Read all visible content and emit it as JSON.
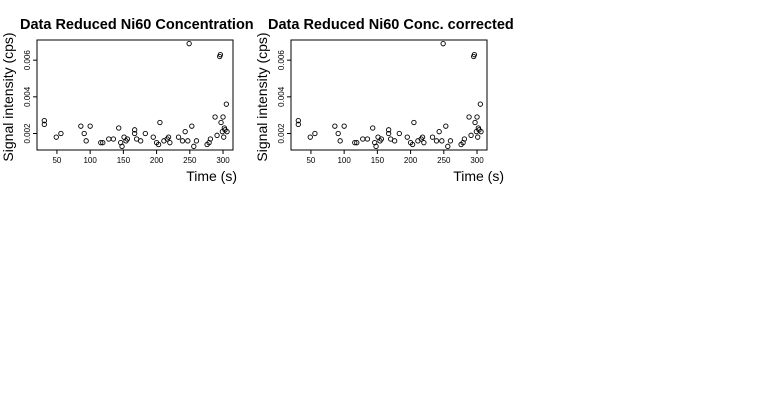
{
  "chart_data": [
    {
      "type": "scatter",
      "title": "Data Reduced Ni60 Concentration",
      "xlabel": "Time (s)",
      "ylabel": "Signal intensity (cps)",
      "xlim": [
        20,
        315
      ],
      "ylim": [
        0.0011,
        0.0071
      ],
      "x_ticks": [
        50,
        100,
        150,
        200,
        250,
        300
      ],
      "x_tick_labels": [
        "50",
        "100",
        "150",
        "200",
        "250",
        "300"
      ],
      "y_ticks": [
        0.002,
        0.004,
        0.006
      ],
      "y_tick_labels": [
        "0.002",
        "0.004",
        "0.006"
      ],
      "grid": false,
      "x": [
        31,
        31,
        49,
        56,
        86,
        91,
        94,
        100,
        116,
        119,
        128,
        135,
        143,
        146,
        148,
        151,
        154,
        156,
        167,
        167,
        170,
        176,
        183,
        195,
        200,
        203,
        205,
        211,
        216,
        218,
        220,
        233,
        239,
        243,
        247,
        249,
        253,
        256,
        260,
        276,
        279,
        281,
        288,
        291,
        295,
        296,
        297,
        299,
        300,
        301,
        302,
        303,
        305,
        306
      ],
      "y": [
        0.0027,
        0.0025,
        0.0018,
        0.002,
        0.0024,
        0.002,
        0.0016,
        0.0024,
        0.0015,
        0.0015,
        0.0017,
        0.0017,
        0.0023,
        0.0015,
        0.0013,
        0.0018,
        0.0016,
        0.0017,
        0.0022,
        0.002,
        0.0017,
        0.0016,
        0.002,
        0.0018,
        0.0015,
        0.0014,
        0.0026,
        0.0016,
        0.0017,
        0.0018,
        0.0015,
        0.0018,
        0.0016,
        0.0021,
        0.0016,
        0.0069,
        0.0024,
        0.0013,
        0.0016,
        0.0014,
        0.0015,
        0.0017,
        0.0029,
        0.0019,
        0.0062,
        0.0063,
        0.0026,
        0.0021,
        0.0029,
        0.0018,
        0.0023,
        0.0022,
        0.0036,
        0.0021
      ]
    },
    {
      "type": "scatter",
      "title": "Data Reduced Ni60 Conc. corrected",
      "xlabel": "Time (s)",
      "ylabel": "Signal intensity (cps)",
      "xlim": [
        20,
        315
      ],
      "ylim": [
        0.0011,
        0.0071
      ],
      "x_ticks": [
        50,
        100,
        150,
        200,
        250,
        300
      ],
      "x_tick_labels": [
        "50",
        "100",
        "150",
        "200",
        "250",
        "300"
      ],
      "y_ticks": [
        0.002,
        0.004,
        0.006
      ],
      "y_tick_labels": [
        "0.002",
        "0.004",
        "0.006"
      ],
      "grid": false,
      "x": [
        31,
        31,
        49,
        56,
        86,
        91,
        94,
        100,
        116,
        119,
        128,
        135,
        143,
        146,
        148,
        151,
        154,
        156,
        167,
        167,
        170,
        176,
        183,
        195,
        200,
        203,
        205,
        211,
        216,
        218,
        220,
        233,
        239,
        243,
        247,
        249,
        253,
        256,
        260,
        276,
        279,
        281,
        288,
        291,
        295,
        296,
        297,
        299,
        300,
        301,
        302,
        303,
        305,
        306
      ],
      "y": [
        0.0027,
        0.0025,
        0.0018,
        0.002,
        0.0024,
        0.002,
        0.0016,
        0.0024,
        0.0015,
        0.0015,
        0.0017,
        0.0017,
        0.0023,
        0.0015,
        0.0013,
        0.0018,
        0.0016,
        0.0017,
        0.0022,
        0.002,
        0.0017,
        0.0016,
        0.002,
        0.0018,
        0.0015,
        0.0014,
        0.0026,
        0.0016,
        0.0017,
        0.0018,
        0.0015,
        0.0018,
        0.0016,
        0.0021,
        0.0016,
        0.0069,
        0.0024,
        0.0013,
        0.0016,
        0.0014,
        0.0015,
        0.0017,
        0.0029,
        0.0019,
        0.0062,
        0.0063,
        0.0026,
        0.0021,
        0.0029,
        0.0018,
        0.0023,
        0.0022,
        0.0036,
        0.0021
      ]
    }
  ]
}
